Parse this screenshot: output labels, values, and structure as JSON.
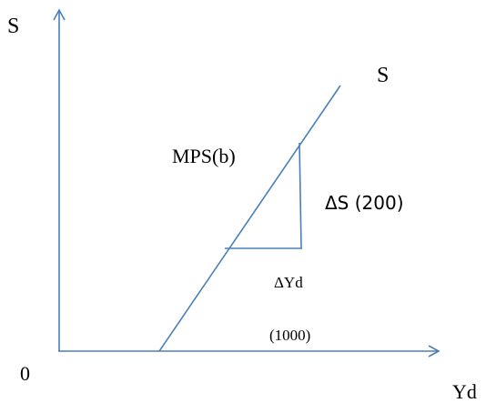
{
  "axes": {
    "y_label": "S",
    "x_label": "Yd",
    "origin_label": "0"
  },
  "line_label": "S",
  "slope_label": "MPS(b)",
  "delta_s_label": "ΔS (200)",
  "delta_yd_label": "ΔYd",
  "income_value_label": "(1000)",
  "colors": {
    "line": "#4a7ebb",
    "text": "#000000",
    "background": "#ffffff"
  }
}
